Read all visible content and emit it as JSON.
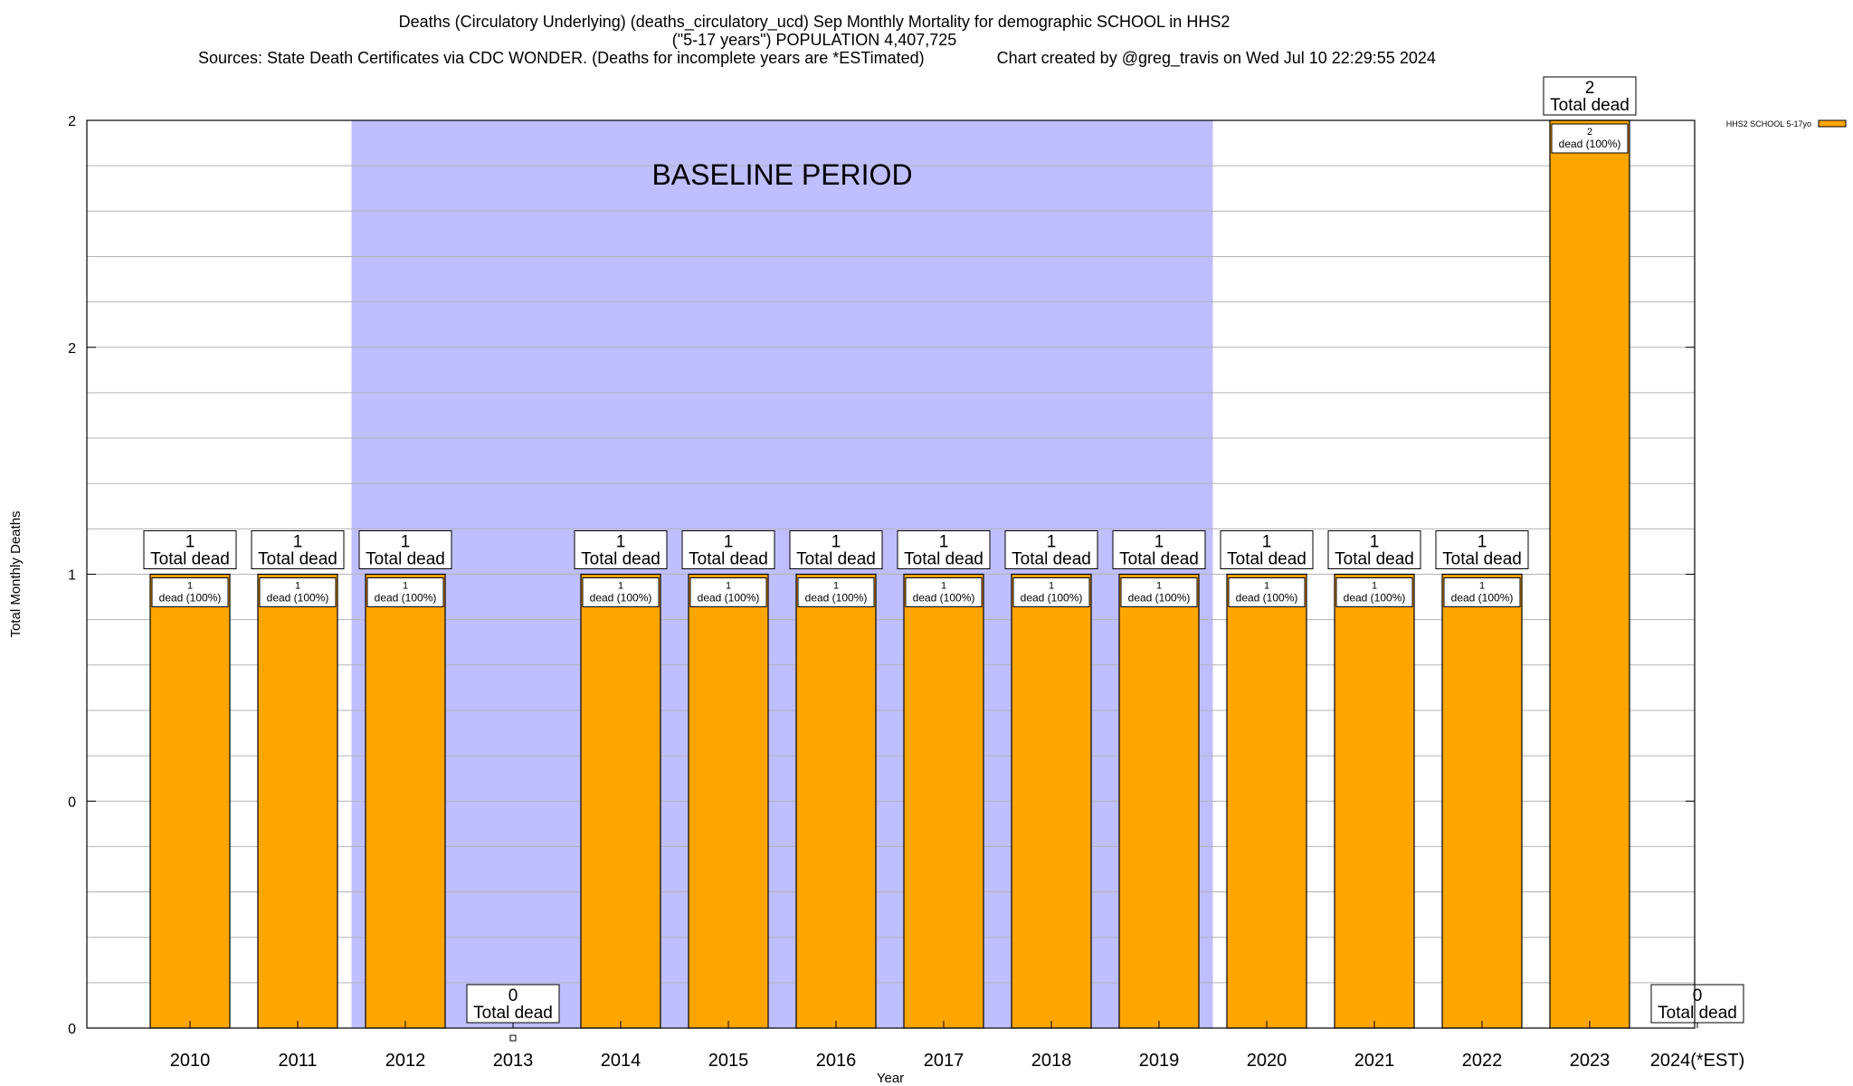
{
  "chart_data": {
    "type": "bar",
    "title_line1": "Deaths (Circulatory Underlying) (deaths_circulatory_ucd) Sep Monthly Mortality for demographic SCHOOL in HHS2",
    "title_line2": "(\"5-17 years\") POPULATION 4,407,725",
    "title_line3": "Sources: State Death Certificates via CDC WONDER. (Deaths for incomplete years are *ESTimated)                Chart created by @greg_travis on Wed Jul 10 22:29:55 2024",
    "xlabel": "Year",
    "ylabel": "Total Monthly Deaths",
    "categories": [
      "2010",
      "2011",
      "2012",
      "2013",
      "2014",
      "2015",
      "2016",
      "2017",
      "2018",
      "2019",
      "2020",
      "2021",
      "2022",
      "2023",
      "2024(*EST)"
    ],
    "series": [
      {
        "name": "HHS2 SCHOOL 5-17yo",
        "color": "#FFA500",
        "values": [
          1,
          1,
          1,
          0,
          1,
          1,
          1,
          1,
          1,
          1,
          1,
          1,
          1,
          2,
          0
        ]
      }
    ],
    "y_tick_labels": [
      "0",
      "0",
      "1",
      "2",
      "2"
    ],
    "ylim": [
      0,
      2
    ],
    "total_label_suffix": "Total dead",
    "inner_label_suffix": "dead (100%)",
    "baseline": {
      "label": "BASELINE PERIOD",
      "from": "2012",
      "to": "2019",
      "color": "#BFBFFF"
    },
    "grid": true,
    "legend_position": "top-right"
  }
}
